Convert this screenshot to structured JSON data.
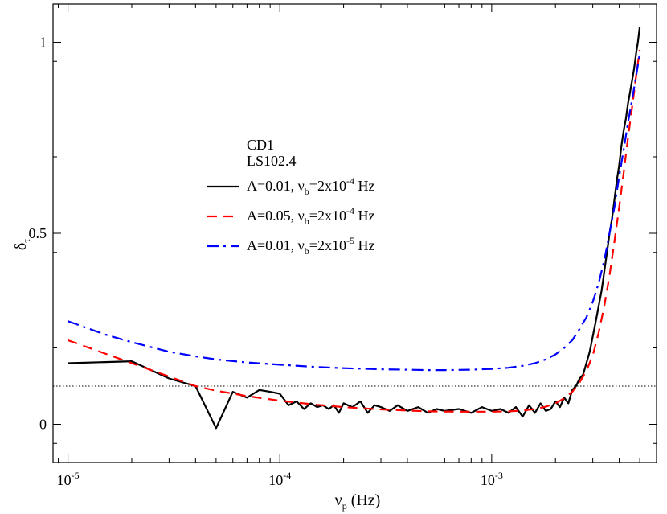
{
  "chart_data": {
    "type": "line",
    "title": "",
    "xscale": "log",
    "xlim": [
      8.5e-06,
      0.006
    ],
    "ylim": [
      -0.1,
      1.1
    ],
    "xticks": [
      {
        "value": 1e-05,
        "base": "10",
        "exp": "-5"
      },
      {
        "value": 0.0001,
        "base": "10",
        "exp": "-4"
      },
      {
        "value": 0.001,
        "base": "10",
        "exp": "-3"
      }
    ],
    "yticks": [
      {
        "value": 0,
        "label": "0"
      },
      {
        "value": 0.5,
        "label": "0.5"
      },
      {
        "value": 1,
        "label": "1"
      }
    ],
    "xlabel": {
      "main": "ν",
      "sub": "p",
      "rest": " (Hz)"
    },
    "ylabel": {
      "main": "δ",
      "sub": "τ"
    },
    "reference_line": {
      "y": 0.1,
      "style": "dotted",
      "color": "#000000"
    },
    "legend_header": [
      "CD1",
      "LS102.4"
    ],
    "legend_placement": "center-left",
    "series": [
      {
        "id": "s1",
        "label": {
          "pre": "A=0.01, ν",
          "sub": "b",
          "mid": "=2x10",
          "sup": "-4",
          "post": " Hz"
        },
        "color": "#000000",
        "dash": "none",
        "x": [
          1e-05,
          2e-05,
          3e-05,
          4e-05,
          5e-05,
          6e-05,
          7e-05,
          8e-05,
          9e-05,
          0.0001,
          0.00011,
          0.00012,
          0.00013,
          0.00014,
          0.00015,
          0.00016,
          0.00017,
          0.00018,
          0.00019,
          0.0002,
          0.00022,
          0.00024,
          0.00026,
          0.00028,
          0.0003,
          0.00033,
          0.00036,
          0.0004,
          0.00045,
          0.0005,
          0.00055,
          0.0006,
          0.0007,
          0.0008,
          0.0009,
          0.001,
          0.0011,
          0.0012,
          0.0013,
          0.0014,
          0.0015,
          0.0016,
          0.0017,
          0.0018,
          0.0019,
          0.002,
          0.0021,
          0.0022,
          0.0023,
          0.0024,
          0.0025,
          0.0026,
          0.0027,
          0.0028,
          0.0029,
          0.003,
          0.0031,
          0.0032,
          0.0033,
          0.0034,
          0.0035,
          0.0036,
          0.0037,
          0.0038,
          0.0039,
          0.004,
          0.0041,
          0.0042,
          0.0043,
          0.0044,
          0.0045,
          0.0046,
          0.0047,
          0.0048,
          0.0049,
          0.005
        ],
        "y": [
          0.16,
          0.165,
          0.12,
          0.1,
          -0.01,
          0.085,
          0.07,
          0.09,
          0.085,
          0.08,
          0.05,
          0.06,
          0.04,
          0.055,
          0.045,
          0.05,
          0.04,
          0.05,
          0.03,
          0.055,
          0.045,
          0.06,
          0.03,
          0.05,
          0.045,
          0.035,
          0.05,
          0.035,
          0.045,
          0.03,
          0.04,
          0.035,
          0.04,
          0.03,
          0.045,
          0.035,
          0.04,
          0.03,
          0.045,
          0.02,
          0.05,
          0.03,
          0.055,
          0.035,
          0.04,
          0.06,
          0.045,
          0.07,
          0.055,
          0.09,
          0.1,
          0.12,
          0.13,
          0.16,
          0.19,
          0.23,
          0.27,
          0.31,
          0.35,
          0.4,
          0.45,
          0.5,
          0.54,
          0.59,
          0.64,
          0.68,
          0.73,
          0.77,
          0.8,
          0.84,
          0.87,
          0.9,
          0.93,
          0.97,
          1.0,
          1.04
        ]
      },
      {
        "id": "s2",
        "label": {
          "pre": "A=0.05, ν",
          "sub": "b",
          "mid": "=2x10",
          "sup": "-4",
          "post": " Hz"
        },
        "color": "#ff0000",
        "dash": "12,8",
        "x": [
          1e-05,
          1.5e-05,
          2e-05,
          3e-05,
          4e-05,
          5e-05,
          7e-05,
          0.0001,
          0.00015,
          0.0002,
          0.0003,
          0.0004,
          0.0005,
          0.0007,
          0.001,
          0.0012,
          0.0014,
          0.0016,
          0.0018,
          0.002,
          0.0022,
          0.0024,
          0.0026,
          0.0028,
          0.003,
          0.0032,
          0.0034,
          0.0036,
          0.0038,
          0.004,
          0.0042,
          0.0044,
          0.0046,
          0.0048,
          0.005
        ],
        "y": [
          0.22,
          0.185,
          0.16,
          0.125,
          0.1,
          0.088,
          0.074,
          0.062,
          0.051,
          0.045,
          0.039,
          0.036,
          0.034,
          0.033,
          0.033,
          0.034,
          0.036,
          0.04,
          0.046,
          0.055,
          0.068,
          0.085,
          0.11,
          0.14,
          0.18,
          0.24,
          0.31,
          0.39,
          0.48,
          0.57,
          0.66,
          0.75,
          0.83,
          0.91,
          0.98
        ]
      },
      {
        "id": "s3",
        "label": {
          "pre": "A=0.01, ν",
          "sub": "b",
          "mid": "=2x10",
          "sup": "-5",
          "post": " Hz"
        },
        "color": "#0000ff",
        "dash": "14,6,3,6",
        "x": [
          1e-05,
          1.5e-05,
          2e-05,
          3e-05,
          4e-05,
          5e-05,
          7e-05,
          0.0001,
          0.00015,
          0.0002,
          0.0003,
          0.0004,
          0.0005,
          0.0006,
          0.0008,
          0.001,
          0.0012,
          0.0014,
          0.0016,
          0.0018,
          0.002,
          0.0022,
          0.0024,
          0.0026,
          0.0028,
          0.003,
          0.0032,
          0.0034,
          0.0036,
          0.0038,
          0.004,
          0.0042,
          0.0044,
          0.0046,
          0.0048,
          0.005
        ],
        "y": [
          0.27,
          0.235,
          0.215,
          0.19,
          0.178,
          0.17,
          0.162,
          0.156,
          0.15,
          0.147,
          0.144,
          0.143,
          0.142,
          0.142,
          0.143,
          0.145,
          0.148,
          0.153,
          0.16,
          0.17,
          0.183,
          0.2,
          0.22,
          0.25,
          0.28,
          0.32,
          0.37,
          0.43,
          0.5,
          0.57,
          0.65,
          0.72,
          0.79,
          0.85,
          0.91,
          0.97
        ]
      }
    ]
  }
}
